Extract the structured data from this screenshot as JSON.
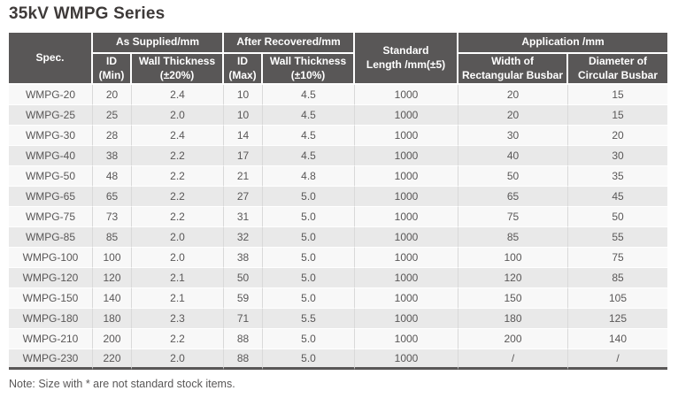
{
  "page": {
    "title": "35kV WMPG Series",
    "note": "Note: Size with * are not standard stock items."
  },
  "colors": {
    "header_bg": "#595757",
    "header_text": "#ffffff",
    "row_odd": "#f8f8f8",
    "row_even": "#e9e9e9",
    "body_text": "#595757",
    "title_text": "#3e3a39",
    "column_divider": "#d9d9d9",
    "bottom_rule": "#595757"
  },
  "table": {
    "header": {
      "spec": "Spec.",
      "as_supplied": "As Supplied/mm",
      "after_recovered": "After Recovered/mm",
      "standard_length": "Standard\nLength /mm(±5)",
      "application": "Application /mm",
      "id_min": "ID\n(Min)",
      "wall_thickness_20": "Wall Thickness\n(±20%)",
      "id_max": "ID\n(Max)",
      "wall_thickness_10": "Wall Thickness\n(±10%)",
      "width_rect_busbar": "Width of\nRectangular Busbar",
      "dia_circ_busbar": "Diameter of\nCircular Busbar"
    },
    "rows": [
      [
        "WMPG-20",
        "20",
        "2.4",
        "10",
        "4.5",
        "1000",
        "20",
        "15"
      ],
      [
        "WMPG-25",
        "25",
        "2.0",
        "10",
        "4.5",
        "1000",
        "20",
        "15"
      ],
      [
        "WMPG-30",
        "28",
        "2.4",
        "14",
        "4.5",
        "1000",
        "30",
        "20"
      ],
      [
        "WMPG-40",
        "38",
        "2.2",
        "17",
        "4.5",
        "1000",
        "40",
        "30"
      ],
      [
        "WMPG-50",
        "48",
        "2.2",
        "21",
        "4.8",
        "1000",
        "50",
        "35"
      ],
      [
        "WMPG-65",
        "65",
        "2.2",
        "27",
        "5.0",
        "1000",
        "65",
        "45"
      ],
      [
        "WMPG-75",
        "73",
        "2.2",
        "31",
        "5.0",
        "1000",
        "75",
        "50"
      ],
      [
        "WMPG-85",
        "85",
        "2.0",
        "32",
        "5.0",
        "1000",
        "85",
        "55"
      ],
      [
        "WMPG-100",
        "100",
        "2.0",
        "38",
        "5.0",
        "1000",
        "100",
        "75"
      ],
      [
        "WMPG-120",
        "120",
        "2.1",
        "50",
        "5.0",
        "1000",
        "120",
        "85"
      ],
      [
        "WMPG-150",
        "140",
        "2.1",
        "59",
        "5.0",
        "1000",
        "150",
        "105"
      ],
      [
        "WMPG-180",
        "180",
        "2.3",
        "71",
        "5.5",
        "1000",
        "180",
        "125"
      ],
      [
        "WMPG-210",
        "200",
        "2.2",
        "88",
        "5.0",
        "1000",
        "200",
        "140"
      ],
      [
        "WMPG-230",
        "220",
        "2.0",
        "88",
        "5.0",
        "1000",
        "/",
        "/"
      ]
    ]
  }
}
